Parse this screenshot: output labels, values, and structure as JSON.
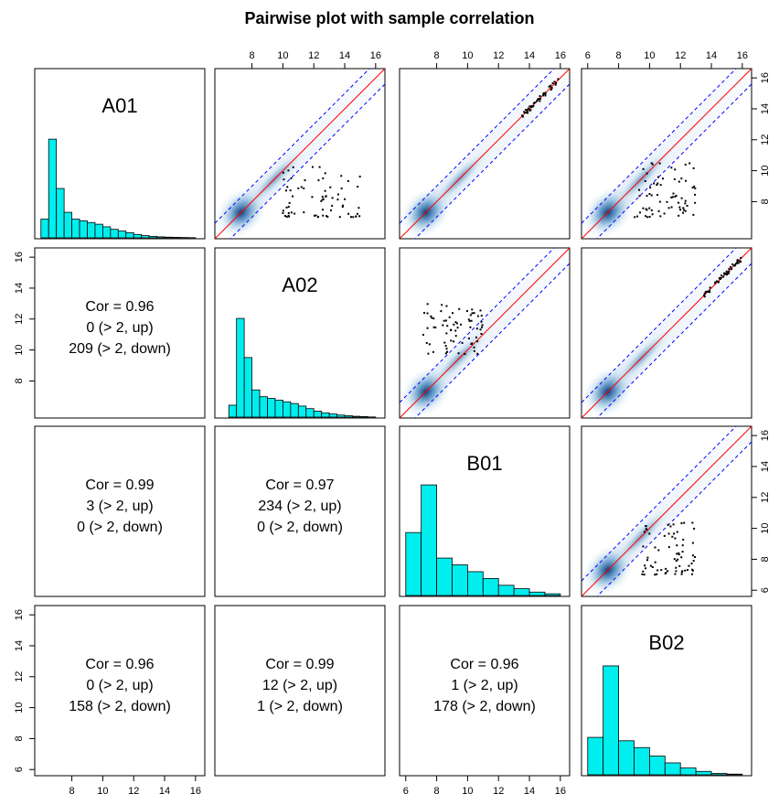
{
  "chart_data": {
    "type": "pairs",
    "title": "Pairwise plot with sample correlation",
    "samples": [
      "A01",
      "A02",
      "B01",
      "B02"
    ],
    "axis_ticks": [
      8,
      10,
      12,
      14,
      16
    ],
    "axis_ticks_extended": [
      6,
      8,
      10,
      12,
      14,
      16
    ],
    "axis_range": [
      5.6,
      16.6
    ],
    "fold_threshold_lines": {
      "identity": "red",
      "offset_plus_minus_1": "blue-dashed"
    },
    "lower_panels": [
      {
        "row": "A02",
        "col": "A01",
        "cor": "Cor = 0.96",
        "up": "0 (> 2, up)",
        "down": "209 (> 2, down)"
      },
      {
        "row": "B01",
        "col": "A01",
        "cor": "Cor = 0.99",
        "up": "3 (> 2, up)",
        "down": "0 (> 2, down)"
      },
      {
        "row": "B01",
        "col": "A02",
        "cor": "Cor = 0.97",
        "up": "234 (> 2, up)",
        "down": "0 (> 2, down)"
      },
      {
        "row": "B02",
        "col": "A01",
        "cor": "Cor = 0.96",
        "up": "0 (> 2, up)",
        "down": "158 (> 2, down)"
      },
      {
        "row": "B02",
        "col": "A02",
        "cor": "Cor = 0.99",
        "up": "12 (> 2, up)",
        "down": "1 (> 2, down)"
      },
      {
        "row": "B02",
        "col": "B01",
        "cor": "Cor = 0.96",
        "up": "1 (> 2, up)",
        "down": "178 (> 2, down)"
      }
    ],
    "histograms": [
      {
        "sample": "A01",
        "breaks": [
          6,
          6.5,
          7,
          7.5,
          8,
          8.5,
          9,
          9.5,
          10,
          10.5,
          11,
          11.5,
          12,
          12.5,
          13,
          13.5,
          14,
          14.5,
          15,
          15.5,
          16
        ],
        "rel_heights": [
          0.11,
          0.58,
          0.29,
          0.15,
          0.11,
          0.1,
          0.09,
          0.08,
          0.065,
          0.05,
          0.04,
          0.03,
          0.02,
          0.013,
          0.009,
          0.006,
          0.004,
          0.003,
          0.002,
          0.001
        ]
      },
      {
        "sample": "A02",
        "breaks": [
          6.5,
          7,
          7.5,
          8,
          8.5,
          9,
          9.5,
          10,
          10.5,
          11,
          11.5,
          12,
          12.5,
          13,
          13.5,
          14,
          14.5,
          15,
          15.5,
          16
        ],
        "rel_heights": [
          0.07,
          0.58,
          0.35,
          0.16,
          0.12,
          0.11,
          0.1,
          0.09,
          0.08,
          0.065,
          0.05,
          0.035,
          0.025,
          0.018,
          0.012,
          0.008,
          0.005,
          0.003,
          0.001
        ]
      },
      {
        "sample": "B01",
        "breaks": [
          6,
          7,
          8,
          9,
          10,
          11,
          12,
          13,
          14,
          15,
          16
        ],
        "rel_heights": [
          0.37,
          0.65,
          0.22,
          0.18,
          0.14,
          0.1,
          0.06,
          0.04,
          0.02,
          0.01
        ]
      },
      {
        "sample": "B02",
        "breaks": [
          6,
          7,
          8,
          9,
          10,
          11,
          12,
          13,
          14,
          15,
          16
        ],
        "rel_heights": [
          0.22,
          0.64,
          0.2,
          0.16,
          0.11,
          0.07,
          0.04,
          0.02,
          0.008,
          0.004
        ]
      }
    ],
    "scatter_panels": [
      {
        "row": "A01",
        "col": "A02",
        "outliers": "down",
        "x_range": [
          10,
          15
        ],
        "y_range": [
          7,
          10.5
        ]
      },
      {
        "row": "A01",
        "col": "B01",
        "outliers": "high-cluster",
        "x_range": [
          13.5,
          16
        ],
        "y_range": [
          13.5,
          16
        ]
      },
      {
        "row": "A01",
        "col": "B02",
        "outliers": "down",
        "x_range": [
          9,
          13
        ],
        "y_range": [
          7,
          10.5
        ]
      },
      {
        "row": "A02",
        "col": "B01",
        "outliers": "up",
        "x_range": [
          7,
          11
        ],
        "y_range": [
          9.5,
          13
        ]
      },
      {
        "row": "A02",
        "col": "B02",
        "outliers": "high-cluster",
        "x_range": [
          13.5,
          16
        ],
        "y_range": [
          13.5,
          16
        ]
      },
      {
        "row": "B01",
        "col": "B02",
        "outliers": "down",
        "x_range": [
          9.5,
          13
        ],
        "y_range": [
          7,
          10.5
        ]
      }
    ],
    "colors": {
      "hist_fill": "#00eeee",
      "density": "#08519c",
      "identity_line": "#ff0000",
      "fold_lines": "#0000ff",
      "points": "#000000"
    }
  }
}
